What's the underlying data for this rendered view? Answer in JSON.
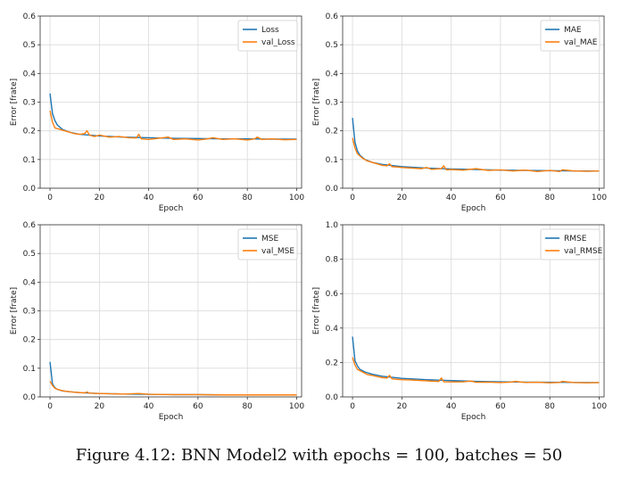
{
  "caption": "Figure 4.12: BNN Model2 with epochs = 100, batches = 50",
  "colors": {
    "train": "#1f77b4",
    "val": "#ff7f0e"
  },
  "chart_data": [
    {
      "type": "line",
      "xlabel": "Epoch",
      "ylabel": "Error [frate]",
      "xlim": [
        -4,
        102
      ],
      "ylim": [
        0,
        0.6
      ],
      "xticks": [
        0,
        20,
        40,
        60,
        80,
        100
      ],
      "yticks": [
        0.0,
        0.1,
        0.2,
        0.3,
        0.4,
        0.5,
        0.6
      ],
      "yticklabels": [
        "0.0",
        "0.1",
        "0.2",
        "0.3",
        "0.4",
        "0.5",
        "0.6"
      ],
      "grid": true,
      "legend": "top-right",
      "series": [
        {
          "name": "Loss",
          "color": "#1f77b4",
          "x": [
            0,
            1,
            2,
            3,
            5,
            8,
            12,
            20,
            30,
            40,
            50,
            60,
            70,
            80,
            90,
            100
          ],
          "y": [
            0.33,
            0.26,
            0.235,
            0.22,
            0.205,
            0.195,
            0.188,
            0.182,
            0.178,
            0.176,
            0.174,
            0.173,
            0.172,
            0.172,
            0.171,
            0.171
          ]
        },
        {
          "name": "val_Loss",
          "color": "#ff7f0e",
          "x": [
            0,
            1,
            2,
            4,
            6,
            8,
            10,
            12,
            14,
            15,
            16,
            18,
            20,
            24,
            28,
            32,
            35,
            36,
            37,
            40,
            45,
            48,
            50,
            55,
            60,
            64,
            66,
            70,
            75,
            80,
            83,
            84,
            86,
            90,
            95,
            100
          ],
          "y": [
            0.27,
            0.23,
            0.21,
            0.205,
            0.2,
            0.195,
            0.19,
            0.188,
            0.19,
            0.2,
            0.185,
            0.18,
            0.185,
            0.178,
            0.18,
            0.176,
            0.175,
            0.188,
            0.172,
            0.17,
            0.175,
            0.178,
            0.17,
            0.172,
            0.168,
            0.172,
            0.176,
            0.17,
            0.172,
            0.168,
            0.172,
            0.178,
            0.17,
            0.172,
            0.169,
            0.17
          ]
        }
      ]
    },
    {
      "type": "line",
      "xlabel": "Epoch",
      "ylabel": "Error [frate]",
      "xlim": [
        -4,
        102
      ],
      "ylim": [
        0,
        0.6
      ],
      "xticks": [
        0,
        20,
        40,
        60,
        80,
        100
      ],
      "yticks": [
        0.0,
        0.1,
        0.2,
        0.3,
        0.4,
        0.5,
        0.6
      ],
      "yticklabels": [
        "0.0",
        "0.1",
        "0.2",
        "0.3",
        "0.4",
        "0.5",
        "0.6"
      ],
      "grid": true,
      "legend": "top-right",
      "series": [
        {
          "name": "MAE",
          "color": "#1f77b4",
          "x": [
            0,
            1,
            2,
            3,
            5,
            8,
            12,
            20,
            30,
            40,
            50,
            60,
            70,
            80,
            90,
            100
          ],
          "y": [
            0.245,
            0.16,
            0.13,
            0.115,
            0.1,
            0.09,
            0.083,
            0.075,
            0.07,
            0.067,
            0.065,
            0.063,
            0.062,
            0.061,
            0.06,
            0.06
          ]
        },
        {
          "name": "val_MAE",
          "color": "#ff7f0e",
          "x": [
            0,
            1,
            2,
            4,
            6,
            8,
            10,
            12,
            14,
            15,
            16,
            18,
            20,
            24,
            28,
            30,
            32,
            36,
            37,
            38,
            40,
            45,
            50,
            55,
            60,
            65,
            70,
            75,
            80,
            84,
            85,
            90,
            95,
            100
          ],
          "y": [
            0.175,
            0.14,
            0.12,
            0.105,
            0.095,
            0.09,
            0.085,
            0.08,
            0.078,
            0.085,
            0.075,
            0.074,
            0.072,
            0.07,
            0.068,
            0.072,
            0.066,
            0.068,
            0.078,
            0.064,
            0.065,
            0.063,
            0.068,
            0.062,
            0.064,
            0.06,
            0.063,
            0.058,
            0.062,
            0.058,
            0.064,
            0.06,
            0.059,
            0.06
          ]
        }
      ]
    },
    {
      "type": "line",
      "xlabel": "Epoch",
      "ylabel": "Error [frate]",
      "xlim": [
        -4,
        102
      ],
      "ylim": [
        0,
        0.6
      ],
      "xticks": [
        0,
        20,
        40,
        60,
        80,
        100
      ],
      "yticks": [
        0.0,
        0.1,
        0.2,
        0.3,
        0.4,
        0.5,
        0.6
      ],
      "yticklabels": [
        "0.0",
        "0.1",
        "0.2",
        "0.3",
        "0.4",
        "0.5",
        "0.6"
      ],
      "grid": true,
      "legend": "top-right",
      "series": [
        {
          "name": "MSE",
          "color": "#1f77b4",
          "x": [
            0,
            1,
            2,
            3,
            5,
            8,
            12,
            20,
            30,
            40,
            50,
            60,
            70,
            80,
            90,
            100
          ],
          "y": [
            0.122,
            0.045,
            0.032,
            0.026,
            0.021,
            0.018,
            0.015,
            0.012,
            0.01,
            0.009,
            0.008,
            0.008,
            0.007,
            0.007,
            0.007,
            0.007
          ]
        },
        {
          "name": "val_MSE",
          "color": "#ff7f0e",
          "x": [
            0,
            1,
            2,
            4,
            6,
            8,
            10,
            14,
            15,
            16,
            20,
            30,
            36,
            40,
            50,
            60,
            70,
            80,
            90,
            100
          ],
          "y": [
            0.055,
            0.04,
            0.03,
            0.024,
            0.02,
            0.018,
            0.016,
            0.014,
            0.017,
            0.013,
            0.012,
            0.01,
            0.012,
            0.009,
            0.008,
            0.008,
            0.007,
            0.007,
            0.007,
            0.007
          ]
        }
      ]
    },
    {
      "type": "line",
      "xlabel": "Epoch",
      "ylabel": "Error [frate]",
      "xlim": [
        -4,
        102
      ],
      "ylim": [
        0,
        1.0
      ],
      "xticks": [
        0,
        20,
        40,
        60,
        80,
        100
      ],
      "yticks": [
        0.0,
        0.2,
        0.4,
        0.6,
        0.8,
        1.0
      ],
      "yticklabels": [
        "0.0",
        "0.2",
        "0.4",
        "0.6",
        "0.8",
        "1.0"
      ],
      "grid": true,
      "legend": "top-right",
      "series": [
        {
          "name": "RMSE",
          "color": "#1f77b4",
          "x": [
            0,
            1,
            2,
            3,
            5,
            8,
            12,
            20,
            30,
            40,
            50,
            60,
            70,
            80,
            90,
            100
          ],
          "y": [
            0.35,
            0.21,
            0.18,
            0.16,
            0.145,
            0.132,
            0.12,
            0.108,
            0.1,
            0.095,
            0.09,
            0.088,
            0.086,
            0.085,
            0.084,
            0.083
          ]
        },
        {
          "name": "val_RMSE",
          "color": "#ff7f0e",
          "x": [
            0,
            1,
            2,
            4,
            6,
            8,
            10,
            12,
            14,
            15,
            16,
            18,
            20,
            24,
            28,
            32,
            35,
            36,
            37,
            40,
            45,
            48,
            50,
            55,
            60,
            64,
            66,
            70,
            75,
            80,
            84,
            85,
            90,
            95,
            100
          ],
          "y": [
            0.23,
            0.185,
            0.16,
            0.145,
            0.13,
            0.125,
            0.118,
            0.112,
            0.11,
            0.125,
            0.105,
            0.102,
            0.1,
            0.098,
            0.095,
            0.092,
            0.09,
            0.11,
            0.088,
            0.087,
            0.088,
            0.092,
            0.085,
            0.086,
            0.083,
            0.086,
            0.09,
            0.084,
            0.085,
            0.082,
            0.084,
            0.09,
            0.083,
            0.082,
            0.083
          ]
        }
      ]
    }
  ]
}
